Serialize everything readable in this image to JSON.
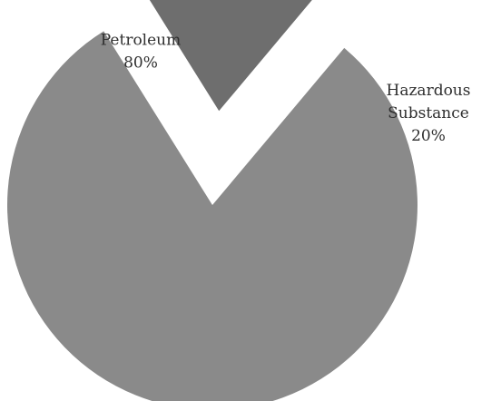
{
  "chart_data": {
    "type": "pie",
    "title": "",
    "exploded": [
      "Hazardous Substance"
    ],
    "slices": [
      {
        "name": "Petroleum",
        "name_lines": [
          "Petroleum"
        ],
        "value": 80,
        "value_label": "80%",
        "color": "#8a8a8a"
      },
      {
        "name": "Hazardous Substance",
        "name_lines": [
          "Hazardous",
          "Substance"
        ],
        "value": 20,
        "value_label": "20%",
        "color": "#6e6e6e"
      }
    ]
  }
}
